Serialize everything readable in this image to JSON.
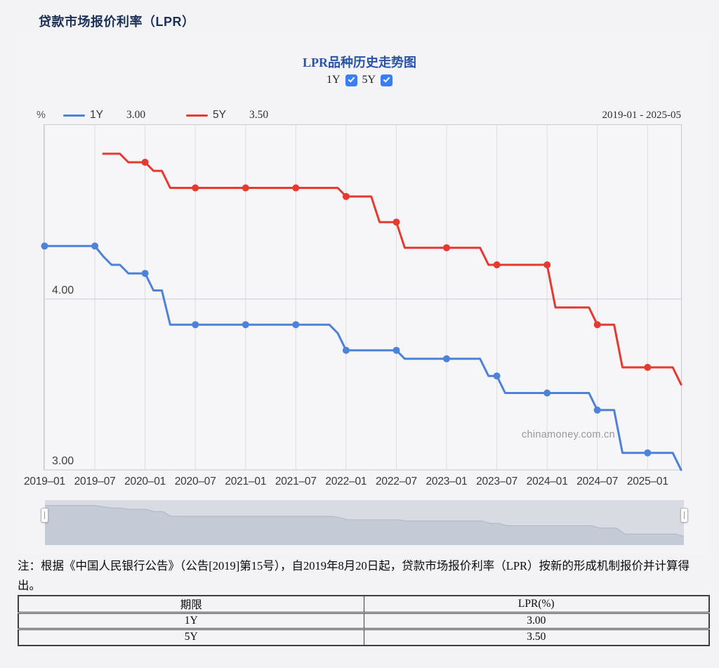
{
  "page": {
    "title": "贷款市场报价利率（LPR）"
  },
  "panel": {
    "chart_title": "LPR品种历史走势图",
    "checkboxes": [
      {
        "label": "1Y",
        "checked": true
      },
      {
        "label": "5Y",
        "checked": true
      }
    ],
    "legend": {
      "unit": "%",
      "items": [
        {
          "name": "1Y",
          "latest": "3.00",
          "color": "#4d82d9"
        },
        {
          "name": "5Y",
          "latest": "3.50",
          "color": "#e6392f"
        }
      ],
      "date_range": "2019-01 - 2025-05"
    },
    "watermark": "chinamoney.com.cn"
  },
  "chart_data": {
    "type": "line",
    "title": "LPR品种历史走势图",
    "ylabel": "%",
    "frequency": "monthly",
    "x_start": "2019-01",
    "x_end": "2025-05",
    "xticks": [
      "2019–01",
      "2019–07",
      "2020–01",
      "2020–07",
      "2021–01",
      "2021–07",
      "2022–01",
      "2022–07",
      "2023–01",
      "2023–07",
      "2024–01",
      "2024–07",
      "2025–01"
    ],
    "yticks": [
      {
        "label": "4.00",
        "value": 4.0
      },
      {
        "label": "3.00",
        "value": 3.0
      }
    ],
    "ylim": [
      3.0,
      5.02
    ],
    "marker_interval_months": 6,
    "grid": {
      "vertical": true,
      "horizontal_at": [
        4.0
      ]
    },
    "legend_position": "top-left",
    "series": [
      {
        "name": "1Y",
        "color": "#4d82d9",
        "values": [
          4.31,
          4.31,
          4.31,
          4.31,
          4.31,
          4.31,
          4.31,
          4.25,
          4.2,
          4.2,
          4.15,
          4.15,
          4.15,
          4.05,
          4.05,
          3.85,
          3.85,
          3.85,
          3.85,
          3.85,
          3.85,
          3.85,
          3.85,
          3.85,
          3.85,
          3.85,
          3.85,
          3.85,
          3.85,
          3.85,
          3.85,
          3.85,
          3.85,
          3.85,
          3.85,
          3.8,
          3.7,
          3.7,
          3.7,
          3.7,
          3.7,
          3.7,
          3.7,
          3.65,
          3.65,
          3.65,
          3.65,
          3.65,
          3.65,
          3.65,
          3.65,
          3.65,
          3.65,
          3.55,
          3.55,
          3.45,
          3.45,
          3.45,
          3.45,
          3.45,
          3.45,
          3.45,
          3.45,
          3.45,
          3.45,
          3.45,
          3.35,
          3.35,
          3.35,
          3.1,
          3.1,
          3.1,
          3.1,
          3.1,
          3.1,
          3.1,
          3.0
        ]
      },
      {
        "name": "5Y",
        "color": "#e6392f",
        "values": [
          null,
          null,
          null,
          null,
          null,
          null,
          null,
          4.85,
          4.85,
          4.85,
          4.8,
          4.8,
          4.8,
          4.75,
          4.75,
          4.65,
          4.65,
          4.65,
          4.65,
          4.65,
          4.65,
          4.65,
          4.65,
          4.65,
          4.65,
          4.65,
          4.65,
          4.65,
          4.65,
          4.65,
          4.65,
          4.65,
          4.65,
          4.65,
          4.65,
          4.65,
          4.6,
          4.6,
          4.6,
          4.6,
          4.45,
          4.45,
          4.45,
          4.3,
          4.3,
          4.3,
          4.3,
          4.3,
          4.3,
          4.3,
          4.3,
          4.3,
          4.3,
          4.2,
          4.2,
          4.2,
          4.2,
          4.2,
          4.2,
          4.2,
          4.2,
          3.95,
          3.95,
          3.95,
          3.95,
          3.95,
          3.85,
          3.85,
          3.85,
          3.6,
          3.6,
          3.6,
          3.6,
          3.6,
          3.6,
          3.6,
          3.5
        ]
      }
    ]
  },
  "note": {
    "text": "注：根据《中国人民银行公告》（公告[2019]第15号），自2019年8月20日起，贷款市场报价利率（LPR）按新的形成机制报价并计算得出。"
  },
  "table": {
    "headers": [
      "期限",
      "LPR(%)"
    ],
    "rows": [
      [
        "1Y",
        "3.00"
      ],
      [
        "5Y",
        "3.50"
      ]
    ]
  }
}
